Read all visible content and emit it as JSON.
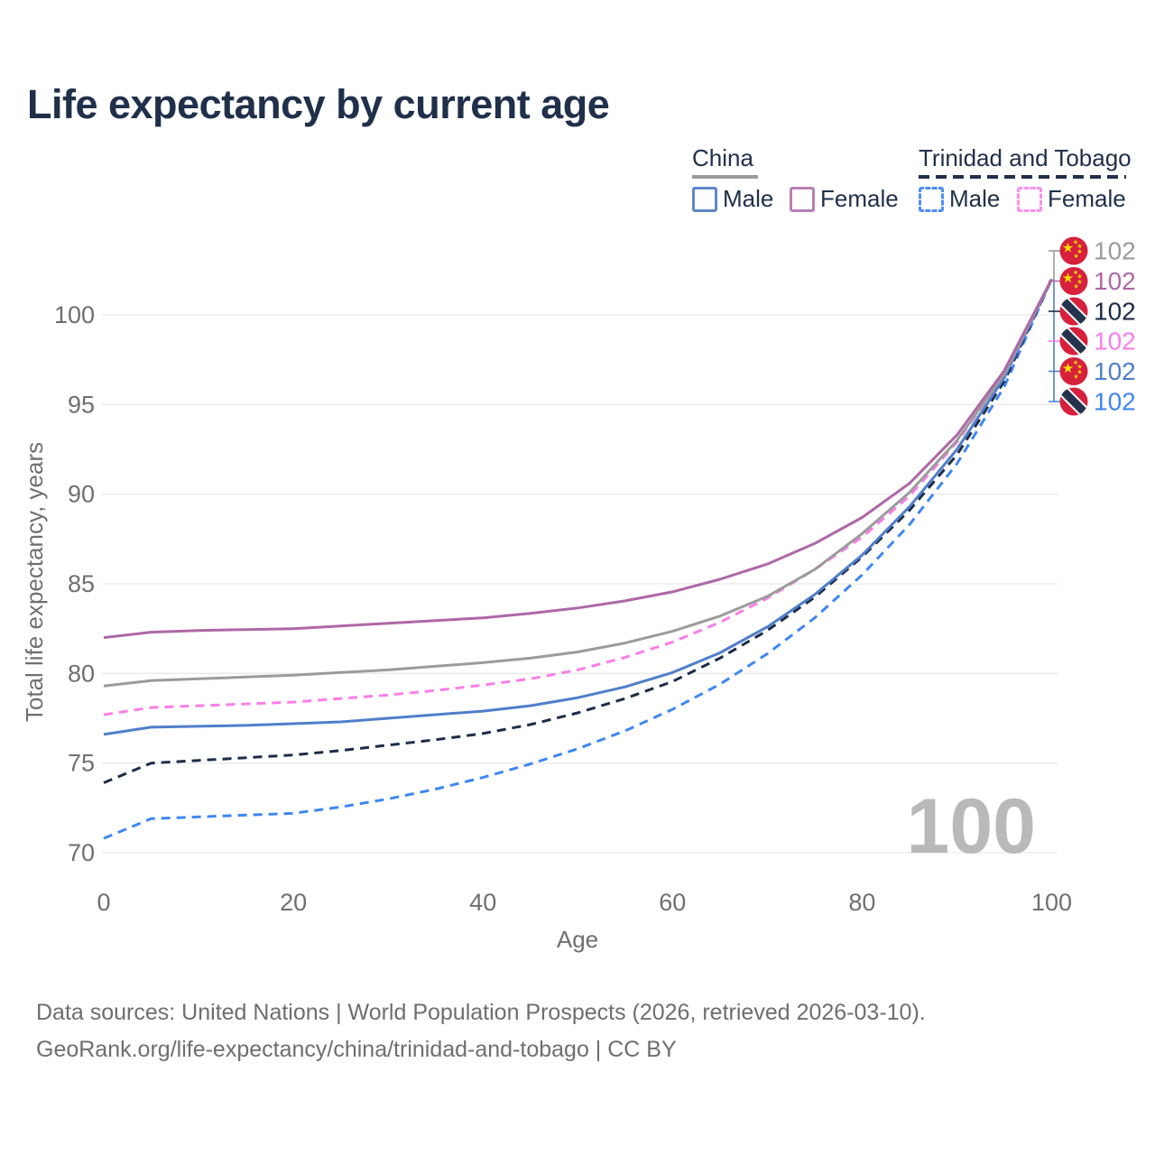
{
  "title": "Life expectancy by current age",
  "legend": {
    "groups": [
      {
        "label": "China",
        "underline_style": "solid",
        "underline_color": "#9b9b9b",
        "items": [
          {
            "label": "Male",
            "color": "#5d87c9",
            "dash": false
          },
          {
            "label": "Female",
            "color": "#b97fb5",
            "dash": false
          }
        ]
      },
      {
        "label": "Trinidad and Tobago",
        "underline_style": "dashed",
        "underline_color": "#20304a",
        "items": [
          {
            "label": "Male",
            "color": "#4f8df3",
            "dash": true
          },
          {
            "label": "Female",
            "color": "#fb90ec",
            "dash": true
          }
        ]
      }
    ]
  },
  "chart_data": {
    "type": "line",
    "title": "Life expectancy by current age",
    "xlabel": "Age",
    "ylabel": "Total life expectancy, years",
    "x_ticks": [
      0,
      20,
      40,
      60,
      80,
      100
    ],
    "y_ticks": [
      70,
      75,
      80,
      85,
      90,
      95,
      100
    ],
    "xlim": [
      0,
      100
    ],
    "ylim": [
      70,
      100
    ],
    "grid": "horizontal",
    "legend_position": "top-right",
    "watermark_age": "100",
    "x": [
      0,
      5,
      10,
      15,
      20,
      25,
      30,
      35,
      40,
      45,
      50,
      55,
      60,
      65,
      70,
      75,
      80,
      85,
      90,
      95,
      100
    ],
    "series": [
      {
        "id": "china-female",
        "country": "China",
        "sex": "Female",
        "color": "#ae68a6",
        "dash": false,
        "end_label": "102",
        "values": [
          82.0,
          82.3,
          82.4,
          82.45,
          82.5,
          82.65,
          82.8,
          82.95,
          83.1,
          83.35,
          83.65,
          84.05,
          84.55,
          85.25,
          86.1,
          87.25,
          88.7,
          90.6,
          93.3,
          96.9,
          102
        ]
      },
      {
        "id": "china-all",
        "country": "China",
        "sex": "All",
        "color": "#9b9b9b",
        "dash": false,
        "end_label": "102",
        "values": [
          79.3,
          79.6,
          79.7,
          79.8,
          79.9,
          80.05,
          80.2,
          80.4,
          80.6,
          80.85,
          81.2,
          81.7,
          82.35,
          83.2,
          84.3,
          85.8,
          87.8,
          90.1,
          93.0,
          96.7,
          102
        ]
      },
      {
        "id": "china-male",
        "country": "China",
        "sex": "Male",
        "color": "#4f7fca",
        "dash": false,
        "end_label": "102",
        "values": [
          76.6,
          77.0,
          77.05,
          77.1,
          77.2,
          77.3,
          77.5,
          77.7,
          77.9,
          78.2,
          78.65,
          79.25,
          80.05,
          81.15,
          82.6,
          84.4,
          86.6,
          89.3,
          92.5,
          96.5,
          102
        ]
      },
      {
        "id": "tt-female",
        "country": "Trinidad and Tobago",
        "sex": "Female",
        "color": "#fa7ee8",
        "dash": true,
        "end_label": "102",
        "values": [
          77.7,
          78.1,
          78.2,
          78.3,
          78.4,
          78.6,
          78.8,
          79.05,
          79.35,
          79.7,
          80.2,
          80.9,
          81.75,
          82.85,
          84.2,
          85.8,
          87.6,
          89.9,
          92.9,
          96.7,
          102
        ]
      },
      {
        "id": "tt-all",
        "country": "Trinidad and Tobago",
        "sex": "All",
        "color": "#1d2c47",
        "dash": true,
        "end_label": "102",
        "values": [
          73.9,
          75.0,
          75.15,
          75.3,
          75.45,
          75.7,
          76.0,
          76.3,
          76.65,
          77.15,
          77.8,
          78.6,
          79.55,
          80.85,
          82.4,
          84.25,
          86.5,
          89.1,
          92.2,
          96.3,
          102
        ]
      },
      {
        "id": "tt-male",
        "country": "Trinidad and Tobago",
        "sex": "Male",
        "color": "#3e87f2",
        "dash": true,
        "end_label": "102",
        "values": [
          70.8,
          71.9,
          72.0,
          72.1,
          72.2,
          72.55,
          73.0,
          73.55,
          74.2,
          74.95,
          75.8,
          76.8,
          78.0,
          79.4,
          81.1,
          83.1,
          85.5,
          88.3,
          91.7,
          96.0,
          102
        ]
      }
    ],
    "end_label_order": [
      "china-all",
      "china-female",
      "tt-all",
      "tt-female",
      "china-male",
      "tt-male"
    ]
  },
  "footer": {
    "line1": "Data sources: United Nations | World Population Prospects (2026, retrieved 2026-03-10).",
    "line2": "GeoRank.org/life-expectancy/china/trinidad-and-tobago | CC BY"
  }
}
